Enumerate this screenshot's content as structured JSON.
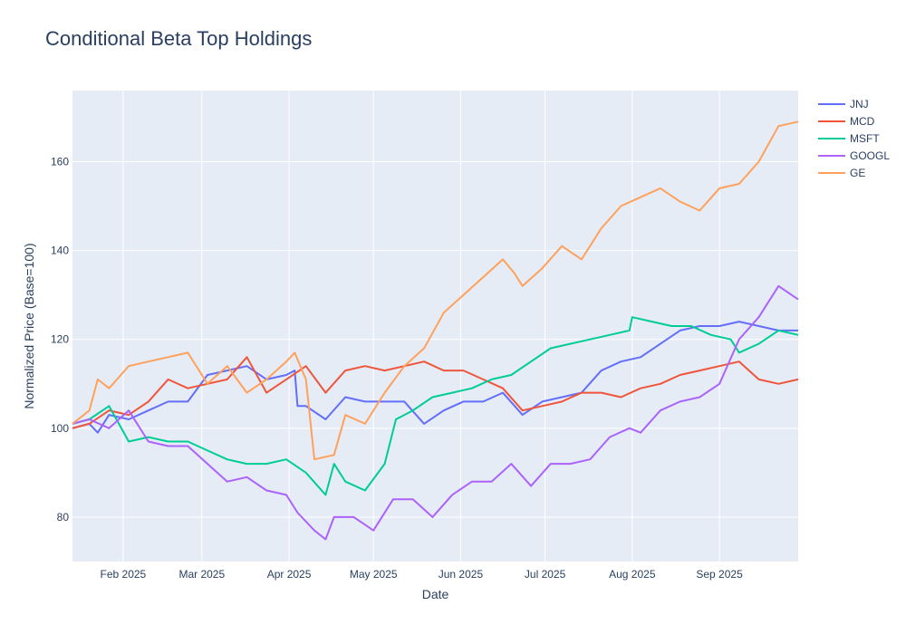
{
  "chart_data": {
    "type": "line",
    "title": "Conditional Beta Top Holdings",
    "xlabel": "Date",
    "ylabel": "Normalized Price (Base=100)",
    "x_range": [
      "2025-01-14",
      "2025-09-29"
    ],
    "ylim": [
      70,
      176
    ],
    "x_ticks": [
      {
        "label": "Feb 2025",
        "date": "2025-02-01"
      },
      {
        "label": "Mar 2025",
        "date": "2025-03-01"
      },
      {
        "label": "Apr 2025",
        "date": "2025-04-01"
      },
      {
        "label": "May 2025",
        "date": "2025-05-01"
      },
      {
        "label": "Jun 2025",
        "date": "2025-06-01"
      },
      {
        "label": "Jul 2025",
        "date": "2025-07-01"
      },
      {
        "label": "Aug 2025",
        "date": "2025-08-01"
      },
      {
        "label": "Sep 2025",
        "date": "2025-09-01"
      }
    ],
    "y_ticks": [
      80,
      100,
      120,
      140,
      160
    ],
    "grid": true,
    "legend": "right",
    "background": "#e5ecf6",
    "series": [
      {
        "name": "JNJ",
        "color": "#636efa",
        "points": [
          [
            "2025-01-14",
            100
          ],
          [
            "2025-01-20",
            101
          ],
          [
            "2025-01-23",
            99
          ],
          [
            "2025-01-27",
            103
          ],
          [
            "2025-02-03",
            102
          ],
          [
            "2025-02-10",
            104
          ],
          [
            "2025-02-17",
            106
          ],
          [
            "2025-02-24",
            106
          ],
          [
            "2025-03-03",
            112
          ],
          [
            "2025-03-10",
            113
          ],
          [
            "2025-03-17",
            114
          ],
          [
            "2025-03-24",
            111
          ],
          [
            "2025-03-31",
            112
          ],
          [
            "2025-04-03",
            113
          ],
          [
            "2025-04-04",
            105
          ],
          [
            "2025-04-07",
            105
          ],
          [
            "2025-04-14",
            102
          ],
          [
            "2025-04-21",
            107
          ],
          [
            "2025-04-28",
            106
          ],
          [
            "2025-05-05",
            106
          ],
          [
            "2025-05-12",
            106
          ],
          [
            "2025-05-19",
            101
          ],
          [
            "2025-05-26",
            104
          ],
          [
            "2025-06-02",
            106
          ],
          [
            "2025-06-09",
            106
          ],
          [
            "2025-06-16",
            108
          ],
          [
            "2025-06-23",
            103
          ],
          [
            "2025-06-30",
            106
          ],
          [
            "2025-07-07",
            107
          ],
          [
            "2025-07-14",
            108
          ],
          [
            "2025-07-21",
            113
          ],
          [
            "2025-07-28",
            115
          ],
          [
            "2025-08-04",
            116
          ],
          [
            "2025-08-11",
            119
          ],
          [
            "2025-08-18",
            122
          ],
          [
            "2025-08-25",
            123
          ],
          [
            "2025-09-01",
            123
          ],
          [
            "2025-09-08",
            124
          ],
          [
            "2025-09-15",
            123
          ],
          [
            "2025-09-22",
            122
          ],
          [
            "2025-09-29",
            122
          ]
        ]
      },
      {
        "name": "MCD",
        "color": "#ef553b",
        "points": [
          [
            "2025-01-14",
            100
          ],
          [
            "2025-01-20",
            101
          ],
          [
            "2025-01-27",
            104
          ],
          [
            "2025-02-03",
            103
          ],
          [
            "2025-02-10",
            106
          ],
          [
            "2025-02-17",
            111
          ],
          [
            "2025-02-24",
            109
          ],
          [
            "2025-03-03",
            110
          ],
          [
            "2025-03-10",
            111
          ],
          [
            "2025-03-17",
            116
          ],
          [
            "2025-03-24",
            108
          ],
          [
            "2025-03-31",
            111
          ],
          [
            "2025-04-07",
            114
          ],
          [
            "2025-04-14",
            108
          ],
          [
            "2025-04-21",
            113
          ],
          [
            "2025-04-28",
            114
          ],
          [
            "2025-05-05",
            113
          ],
          [
            "2025-05-12",
            114
          ],
          [
            "2025-05-19",
            115
          ],
          [
            "2025-05-26",
            113
          ],
          [
            "2025-06-02",
            113
          ],
          [
            "2025-06-09",
            111
          ],
          [
            "2025-06-16",
            109
          ],
          [
            "2025-06-23",
            104
          ],
          [
            "2025-06-30",
            105
          ],
          [
            "2025-07-07",
            106
          ],
          [
            "2025-07-14",
            108
          ],
          [
            "2025-07-21",
            108
          ],
          [
            "2025-07-28",
            107
          ],
          [
            "2025-08-04",
            109
          ],
          [
            "2025-08-11",
            110
          ],
          [
            "2025-08-18",
            112
          ],
          [
            "2025-08-25",
            113
          ],
          [
            "2025-09-01",
            114
          ],
          [
            "2025-09-08",
            115
          ],
          [
            "2025-09-15",
            111
          ],
          [
            "2025-09-22",
            110
          ],
          [
            "2025-09-29",
            111
          ]
        ]
      },
      {
        "name": "MSFT",
        "color": "#00cc96",
        "points": [
          [
            "2025-01-14",
            101
          ],
          [
            "2025-01-20",
            102
          ],
          [
            "2025-01-27",
            105
          ],
          [
            "2025-02-03",
            97
          ],
          [
            "2025-02-10",
            98
          ],
          [
            "2025-02-17",
            97
          ],
          [
            "2025-02-24",
            97
          ],
          [
            "2025-03-03",
            95
          ],
          [
            "2025-03-10",
            93
          ],
          [
            "2025-03-17",
            92
          ],
          [
            "2025-03-24",
            92
          ],
          [
            "2025-03-31",
            93
          ],
          [
            "2025-04-07",
            90
          ],
          [
            "2025-04-14",
            85
          ],
          [
            "2025-04-17",
            92
          ],
          [
            "2025-04-21",
            88
          ],
          [
            "2025-04-28",
            86
          ],
          [
            "2025-05-05",
            92
          ],
          [
            "2025-05-09",
            102
          ],
          [
            "2025-05-15",
            104
          ],
          [
            "2025-05-22",
            107
          ],
          [
            "2025-05-29",
            108
          ],
          [
            "2025-06-05",
            109
          ],
          [
            "2025-06-12",
            111
          ],
          [
            "2025-06-19",
            112
          ],
          [
            "2025-06-26",
            115
          ],
          [
            "2025-07-03",
            118
          ],
          [
            "2025-07-10",
            119
          ],
          [
            "2025-07-17",
            120
          ],
          [
            "2025-07-24",
            121
          ],
          [
            "2025-07-31",
            122
          ],
          [
            "2025-08-01",
            125
          ],
          [
            "2025-08-08",
            124
          ],
          [
            "2025-08-15",
            123
          ],
          [
            "2025-08-22",
            123
          ],
          [
            "2025-08-29",
            121
          ],
          [
            "2025-09-05",
            120
          ],
          [
            "2025-09-08",
            117
          ],
          [
            "2025-09-15",
            119
          ],
          [
            "2025-09-22",
            122
          ],
          [
            "2025-09-29",
            121
          ]
        ]
      },
      {
        "name": "GOOGL",
        "color": "#ab63fa",
        "points": [
          [
            "2025-01-14",
            101
          ],
          [
            "2025-01-20",
            102
          ],
          [
            "2025-01-27",
            100
          ],
          [
            "2025-02-03",
            104
          ],
          [
            "2025-02-10",
            97
          ],
          [
            "2025-02-17",
            96
          ],
          [
            "2025-02-24",
            96
          ],
          [
            "2025-03-03",
            92
          ],
          [
            "2025-03-10",
            88
          ],
          [
            "2025-03-17",
            89
          ],
          [
            "2025-03-24",
            86
          ],
          [
            "2025-03-31",
            85
          ],
          [
            "2025-04-04",
            81
          ],
          [
            "2025-04-10",
            77
          ],
          [
            "2025-04-14",
            75
          ],
          [
            "2025-04-17",
            80
          ],
          [
            "2025-04-24",
            80
          ],
          [
            "2025-05-01",
            77
          ],
          [
            "2025-05-08",
            84
          ],
          [
            "2025-05-15",
            84
          ],
          [
            "2025-05-22",
            80
          ],
          [
            "2025-05-29",
            85
          ],
          [
            "2025-06-05",
            88
          ],
          [
            "2025-06-12",
            88
          ],
          [
            "2025-06-19",
            92
          ],
          [
            "2025-06-26",
            87
          ],
          [
            "2025-07-03",
            92
          ],
          [
            "2025-07-10",
            92
          ],
          [
            "2025-07-17",
            93
          ],
          [
            "2025-07-24",
            98
          ],
          [
            "2025-07-31",
            100
          ],
          [
            "2025-08-04",
            99
          ],
          [
            "2025-08-11",
            104
          ],
          [
            "2025-08-18",
            106
          ],
          [
            "2025-08-25",
            107
          ],
          [
            "2025-09-01",
            110
          ],
          [
            "2025-09-08",
            120
          ],
          [
            "2025-09-15",
            125
          ],
          [
            "2025-09-22",
            132
          ],
          [
            "2025-09-29",
            129
          ]
        ]
      },
      {
        "name": "GE",
        "color": "#ffa15a",
        "points": [
          [
            "2025-01-14",
            101
          ],
          [
            "2025-01-20",
            104
          ],
          [
            "2025-01-23",
            111
          ],
          [
            "2025-01-27",
            109
          ],
          [
            "2025-02-03",
            114
          ],
          [
            "2025-02-10",
            115
          ],
          [
            "2025-02-17",
            116
          ],
          [
            "2025-02-24",
            117
          ],
          [
            "2025-03-03",
            110
          ],
          [
            "2025-03-10",
            114
          ],
          [
            "2025-03-17",
            108
          ],
          [
            "2025-03-24",
            111
          ],
          [
            "2025-03-31",
            115
          ],
          [
            "2025-04-03",
            117
          ],
          [
            "2025-04-07",
            111
          ],
          [
            "2025-04-10",
            93
          ],
          [
            "2025-04-17",
            94
          ],
          [
            "2025-04-21",
            103
          ],
          [
            "2025-04-28",
            101
          ],
          [
            "2025-05-05",
            108
          ],
          [
            "2025-05-12",
            114
          ],
          [
            "2025-05-19",
            118
          ],
          [
            "2025-05-26",
            126
          ],
          [
            "2025-06-02",
            130
          ],
          [
            "2025-06-09",
            134
          ],
          [
            "2025-06-16",
            138
          ],
          [
            "2025-06-20",
            135
          ],
          [
            "2025-06-23",
            132
          ],
          [
            "2025-06-30",
            136
          ],
          [
            "2025-07-07",
            141
          ],
          [
            "2025-07-14",
            138
          ],
          [
            "2025-07-21",
            145
          ],
          [
            "2025-07-28",
            150
          ],
          [
            "2025-08-04",
            152
          ],
          [
            "2025-08-11",
            154
          ],
          [
            "2025-08-18",
            151
          ],
          [
            "2025-08-25",
            149
          ],
          [
            "2025-09-01",
            154
          ],
          [
            "2025-09-08",
            155
          ],
          [
            "2025-09-15",
            160
          ],
          [
            "2025-09-22",
            168
          ],
          [
            "2025-09-29",
            169
          ]
        ]
      }
    ]
  }
}
